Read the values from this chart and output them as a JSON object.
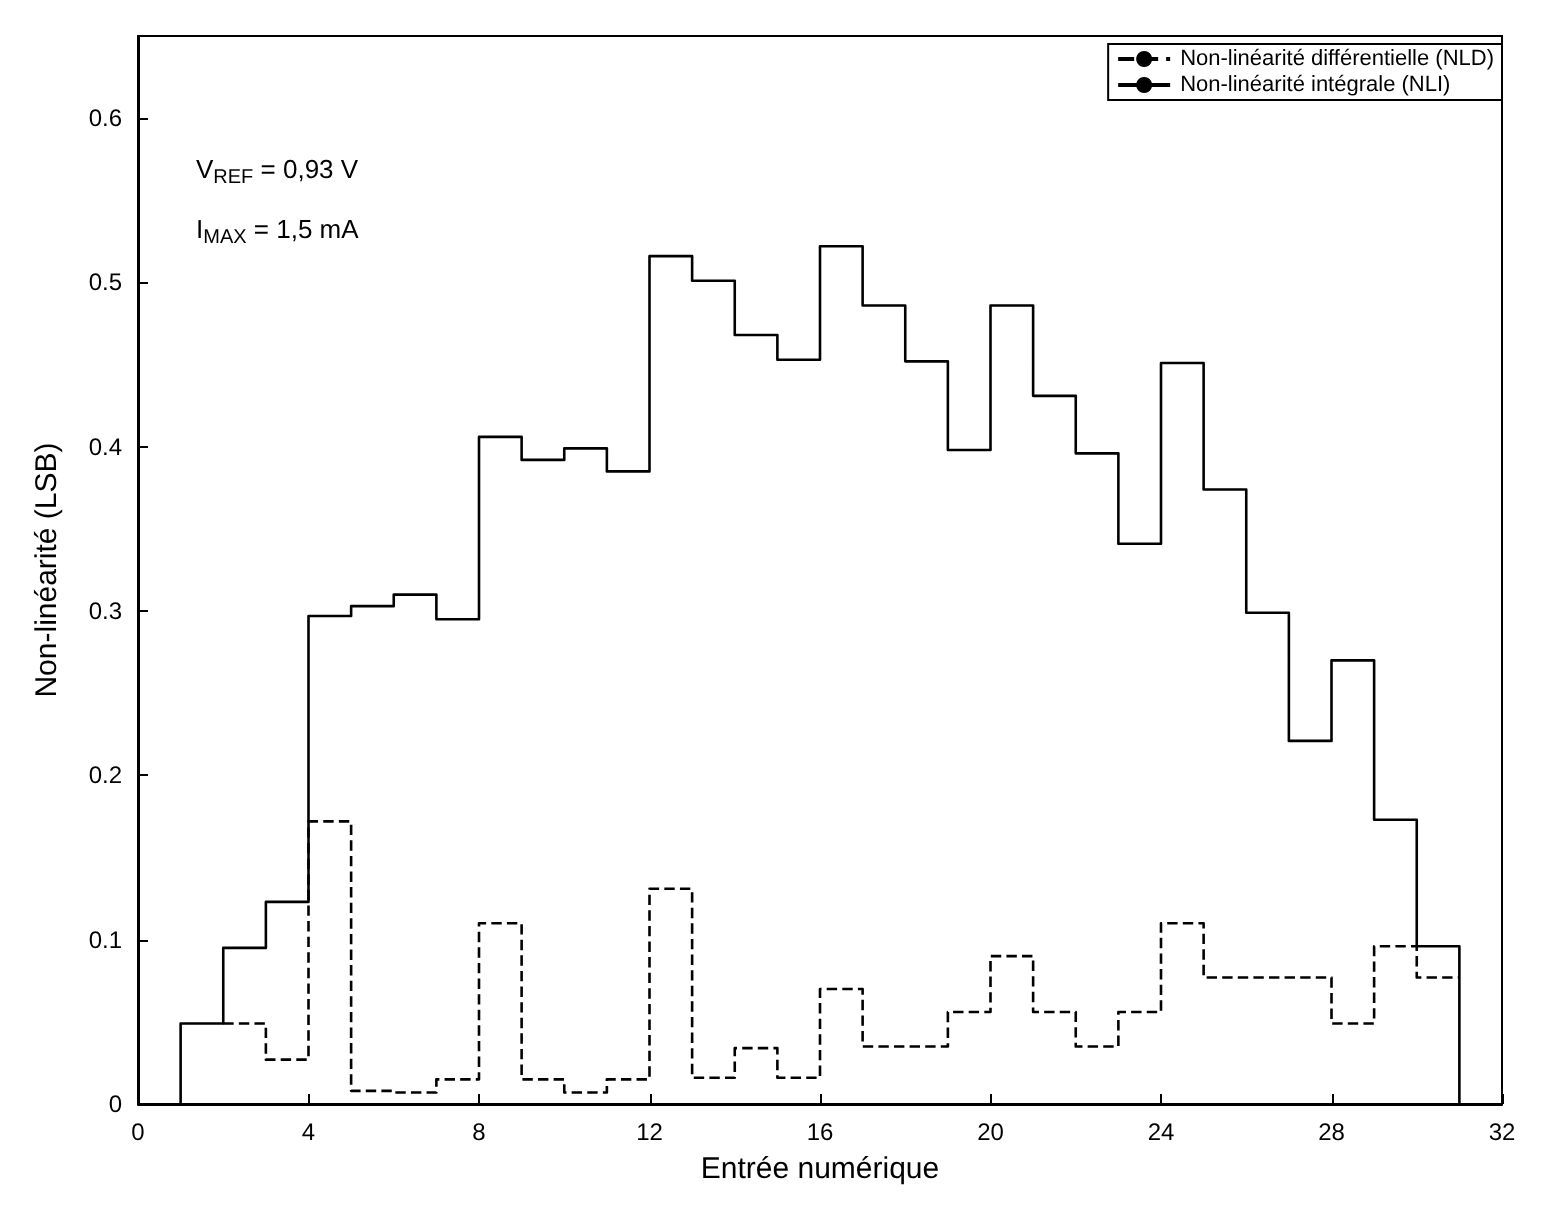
{
  "chart_data": {
    "type": "step",
    "xlabel": "Entrée numérique",
    "ylabel": "Non-linéarité (LSB)",
    "series": [
      {
        "name": "Non-linéarité différentielle (NLD)",
        "color": "#000000",
        "line_style": "dashed",
        "x": [
          2,
          3,
          4,
          5,
          6,
          7,
          8,
          9,
          10,
          11,
          12,
          13,
          14,
          15,
          16,
          17,
          18,
          19,
          20,
          21,
          22,
          23,
          24,
          25,
          26,
          27,
          28,
          29,
          30,
          31
        ],
        "values": [
          0.049,
          0.027,
          0.172,
          0.008,
          0.007,
          0.015,
          0.11,
          0.015,
          0.007,
          0.015,
          0.131,
          0.016,
          0.034,
          0.016,
          0.07,
          0.035,
          0.035,
          0.056,
          0.09,
          0.056,
          0.035,
          0.056,
          0.11,
          0.077,
          0.077,
          0.077,
          0.049,
          0.096,
          0.077,
          0.077
        ]
      },
      {
        "name": "Non-linéarité intégrale (NLI)",
        "color": "#000000",
        "line_style": "solid",
        "x": [
          1,
          1,
          2,
          3,
          4,
          5,
          6,
          7,
          8,
          9,
          10,
          11,
          12,
          13,
          14,
          15,
          16,
          17,
          18,
          19,
          20,
          21,
          22,
          23,
          24,
          25,
          26,
          27,
          28,
          29,
          30,
          31
        ],
        "values": [
          0,
          0.049,
          0.095,
          0.123,
          0.297,
          0.303,
          0.31,
          0.295,
          0.406,
          0.392,
          0.399,
          0.385,
          0.516,
          0.501,
          0.468,
          0.453,
          0.522,
          0.486,
          0.452,
          0.398,
          0.486,
          0.431,
          0.396,
          0.341,
          0.451,
          0.374,
          0.299,
          0.221,
          0.27,
          0.173,
          0.096,
          0
        ]
      }
    ],
    "annotations": [
      "V$_{REF}$ = 0,93 V",
      "I$_{MAX}$ = 1,5 mA"
    ],
    "xlim": [
      0,
      32
    ],
    "xticks": [
      0,
      4,
      8,
      12,
      16,
      20,
      24,
      28,
      32
    ],
    "ylim": [
      0,
      0.65
    ],
    "yticks": [
      0,
      0.1,
      0.2,
      0.3,
      0.4,
      0.5,
      0.6
    ],
    "grid": false,
    "legend": "top right",
    "marker": "none"
  }
}
